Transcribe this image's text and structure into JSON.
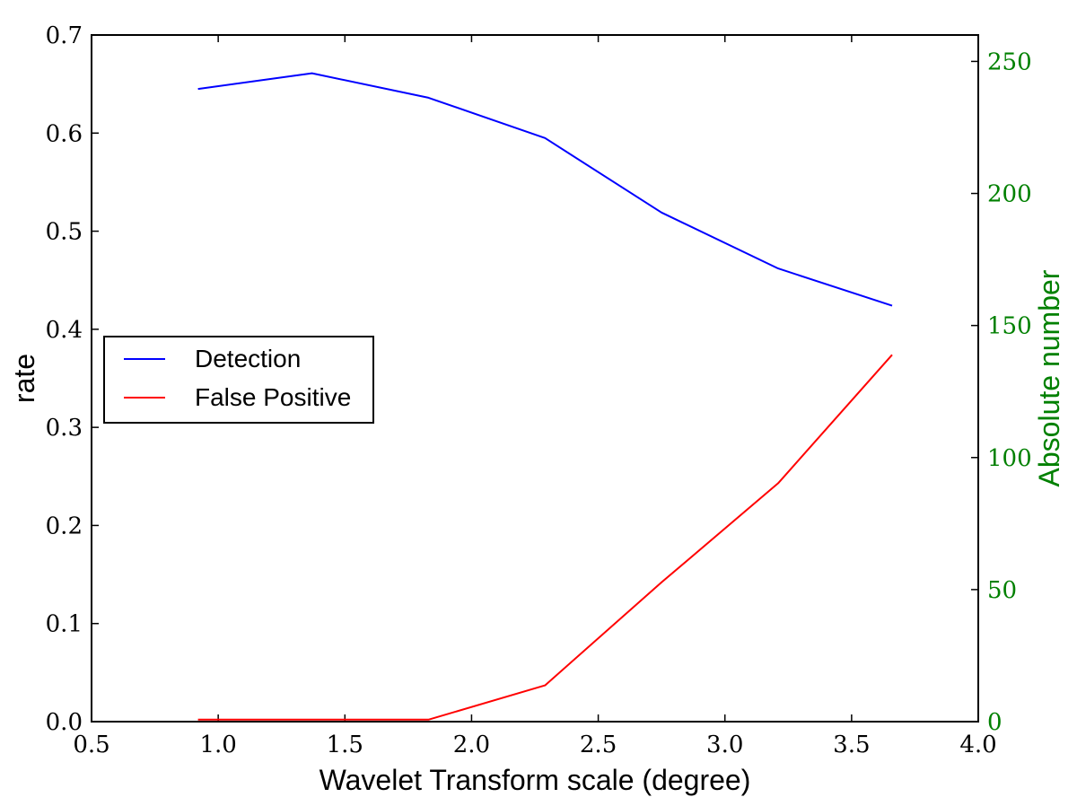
{
  "chart_data": {
    "type": "line",
    "xlabel": "Wavelet Transform scale (degree)",
    "ylabel": "rate",
    "y2label": "Absolute number",
    "xlim": [
      0.5,
      4.0
    ],
    "ylim": [
      0.0,
      0.7
    ],
    "y2lim": [
      0,
      260
    ],
    "x_ticks": [
      "0.5",
      "1.0",
      "1.5",
      "2.0",
      "2.5",
      "3.0",
      "3.5",
      "4.0"
    ],
    "y_ticks": [
      "0.0",
      "0.1",
      "0.2",
      "0.3",
      "0.4",
      "0.5",
      "0.6",
      "0.7"
    ],
    "y2_ticks": [
      "0",
      "50",
      "100",
      "150",
      "200",
      "250"
    ],
    "grid": false,
    "legend_position": "center-left",
    "colors": {
      "right_axis": "#008000"
    },
    "x": [
      0.92,
      1.37,
      1.83,
      2.29,
      2.75,
      3.21,
      3.66
    ],
    "series": [
      {
        "name": "Detection",
        "color": "#0000ff",
        "values": [
          0.645,
          0.661,
          0.636,
          0.595,
          0.519,
          0.462,
          0.424
        ]
      },
      {
        "name": "False Positive",
        "color": "#ff0000",
        "values": [
          0.002,
          0.002,
          0.002,
          0.037,
          0.142,
          0.243,
          0.374
        ]
      }
    ]
  }
}
